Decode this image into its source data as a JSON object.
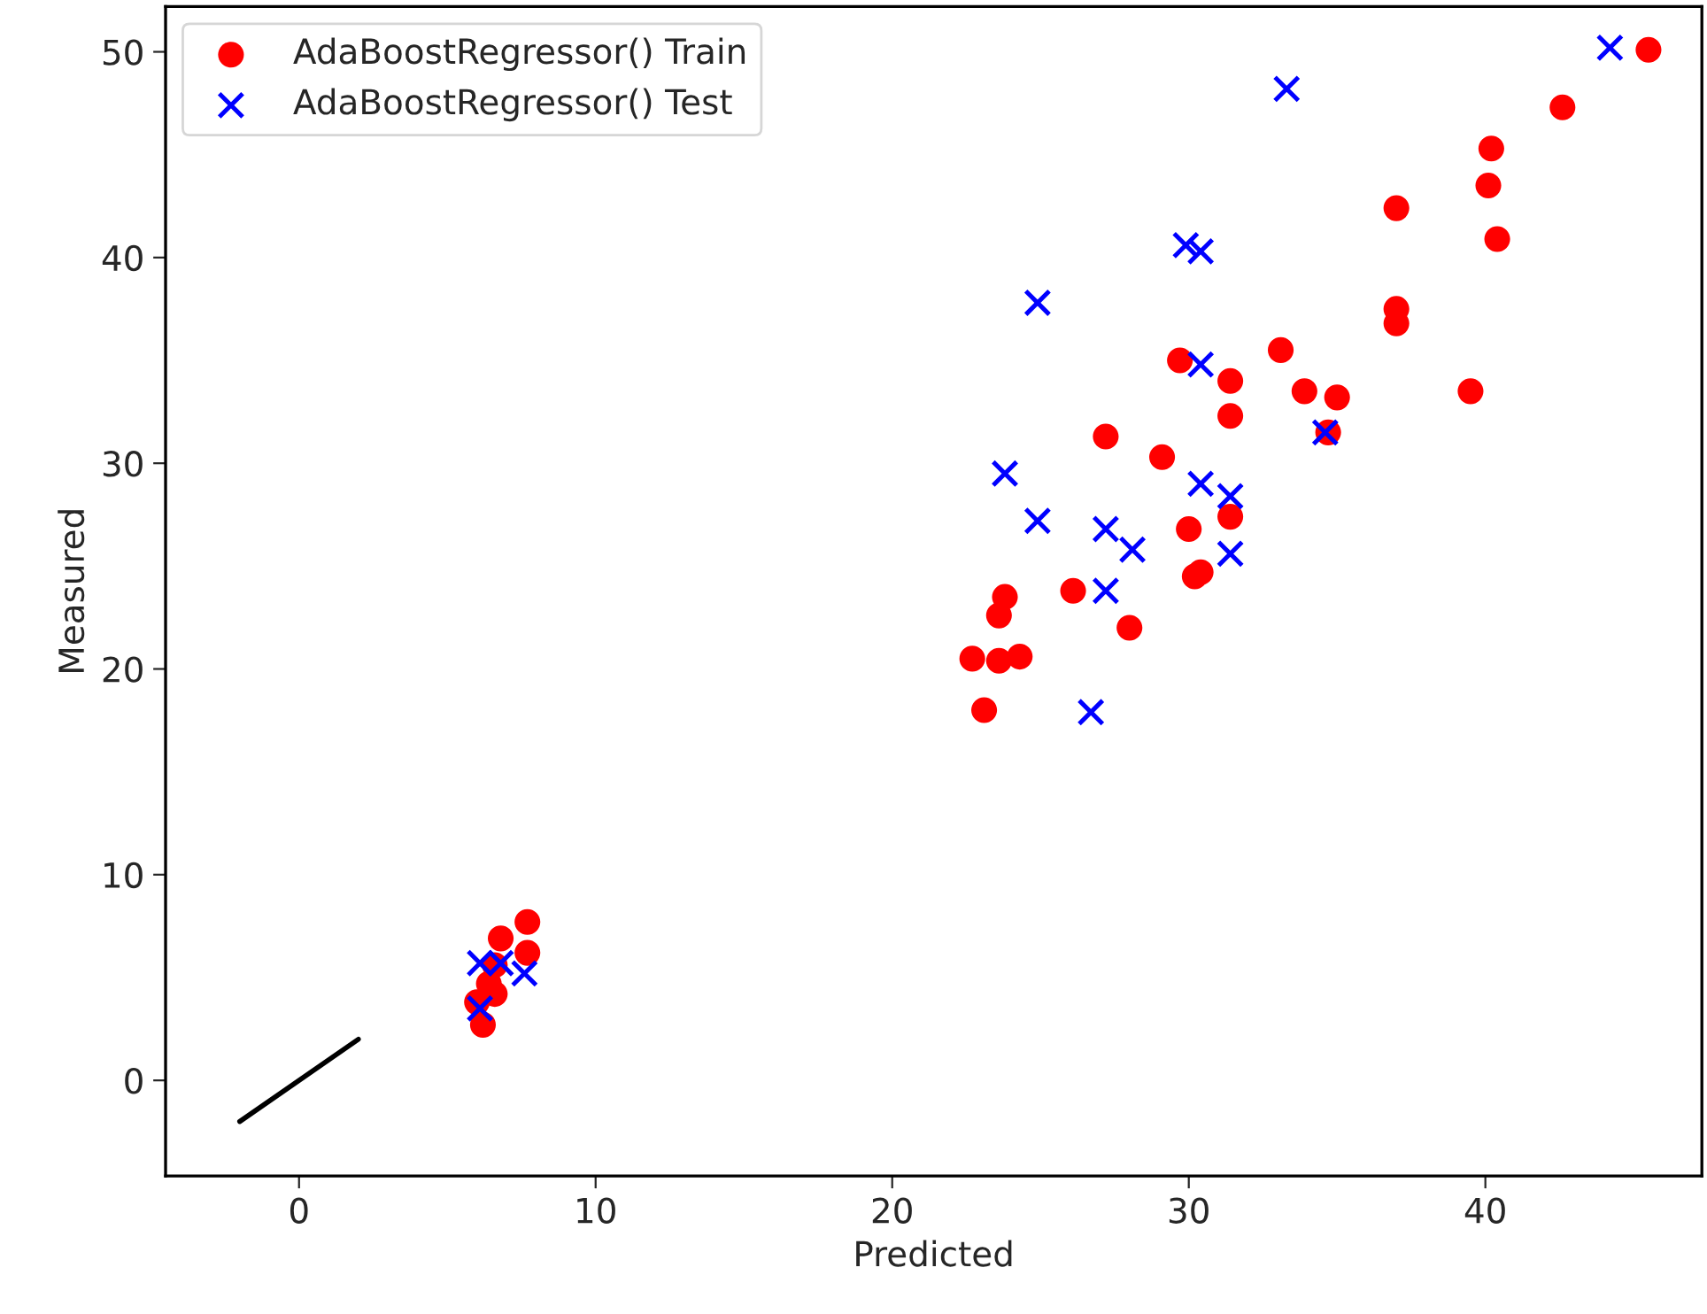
{
  "chart_data": {
    "type": "scatter",
    "xlabel": "Predicted",
    "ylabel": "Measured",
    "xlim": [
      -4.5,
      47.3
    ],
    "ylim": [
      -4.65,
      52.2
    ],
    "xticks": [
      0,
      10,
      20,
      30,
      40
    ],
    "yticks": [
      0,
      10,
      20,
      30,
      40,
      50
    ],
    "grid": false,
    "legend": "top left",
    "series": [
      {
        "name": "AdaBoostRegressor() Train",
        "color": "#ff0000",
        "marker": "circle",
        "x": [
          45.5,
          42.6,
          40.2,
          40.1,
          40.4,
          37.0,
          37.0,
          37.0,
          39.5,
          33.1,
          33.9,
          35.0,
          34.7,
          29.7,
          31.4,
          31.4,
          27.2,
          29.1,
          30.0,
          31.4,
          30.2,
          30.4,
          26.1,
          28.0,
          23.8,
          23.6,
          22.7,
          23.6,
          24.3,
          23.1,
          7.7,
          6.8,
          7.7,
          6.6,
          6.4,
          6.6,
          6.2,
          6.0
        ],
        "values": [
          50.1,
          47.3,
          45.3,
          43.5,
          40.9,
          42.4,
          37.5,
          36.8,
          33.5,
          35.5,
          33.5,
          33.2,
          31.5,
          35.0,
          34.0,
          32.3,
          31.3,
          30.3,
          26.8,
          27.4,
          24.5,
          24.7,
          23.8,
          22.0,
          23.5,
          22.6,
          20.5,
          20.4,
          20.6,
          18.0,
          7.7,
          6.9,
          6.2,
          5.6,
          4.7,
          4.2,
          2.7,
          3.8
        ]
      },
      {
        "name": "AdaBoostRegressor() Test",
        "color": "#0000ff",
        "marker": "cross",
        "x": [
          44.2,
          33.3,
          29.9,
          30.4,
          24.9,
          30.4,
          34.6,
          23.8,
          24.9,
          27.2,
          30.4,
          31.4,
          28.1,
          31.4,
          27.2,
          26.7,
          6.1,
          6.8,
          7.6,
          6.1
        ],
        "values": [
          50.2,
          48.2,
          40.6,
          40.3,
          37.8,
          34.8,
          31.5,
          29.5,
          27.2,
          26.8,
          29.0,
          28.4,
          25.8,
          25.6,
          23.8,
          17.9,
          5.7,
          5.7,
          5.2,
          3.5
        ]
      },
      {
        "type": "line",
        "color": "#000000",
        "marker": "none",
        "line_style": "solid",
        "x": [
          -2,
          2
        ],
        "values": [
          -2,
          2
        ]
      }
    ]
  }
}
